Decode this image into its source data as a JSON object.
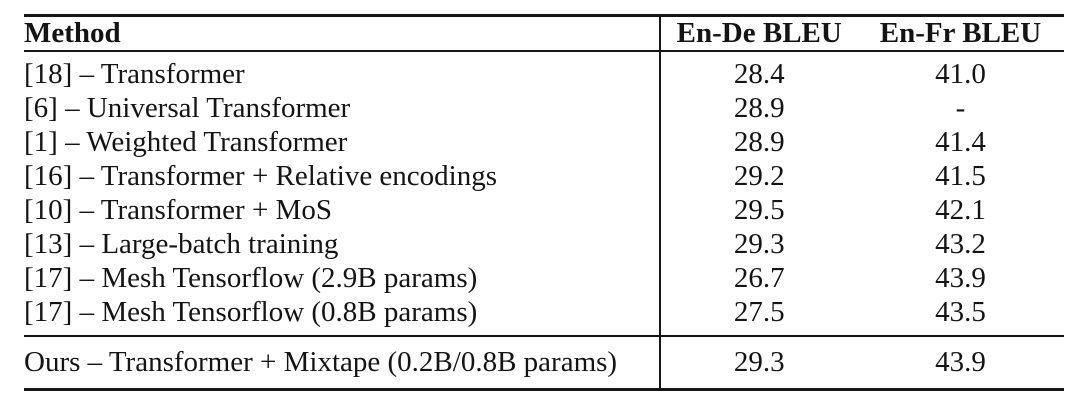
{
  "page": {
    "background_color": "#ffffff",
    "text_color": "#141414",
    "rule_color": "#161616"
  },
  "table": {
    "columns": [
      "Method",
      "En-De BLEU",
      "En-Fr BLEU"
    ],
    "rows": [
      {
        "method": "[18] – Transformer",
        "en_de": "28.4",
        "en_fr": "41.0"
      },
      {
        "method": "[6] – Universal Transformer",
        "en_de": "28.9",
        "en_fr": "-"
      },
      {
        "method": "[1] – Weighted Transformer",
        "en_de": "28.9",
        "en_fr": "41.4"
      },
      {
        "method": "[16] – Transformer + Relative encodings",
        "en_de": "29.2",
        "en_fr": "41.5"
      },
      {
        "method": "[10] – Transformer + MoS",
        "en_de": "29.5",
        "en_fr": "42.1"
      },
      {
        "method": "[13] – Large-batch training",
        "en_de": "29.3",
        "en_fr": "43.2"
      },
      {
        "method": "[17] – Mesh Tensorflow (2.9B params)",
        "en_de": "26.7",
        "en_fr": "43.9"
      },
      {
        "method": "[17] – Mesh Tensorflow (0.8B params)",
        "en_de": "27.5",
        "en_fr": "43.5"
      }
    ],
    "ours_row": {
      "method": "Ours – Transformer + Mixtape (0.2B/0.8B params)",
      "en_de": "29.3",
      "en_fr": "43.9"
    }
  },
  "chart_data": {
    "type": "table",
    "title": "",
    "columns": [
      "Method",
      "En-De BLEU",
      "En-Fr BLEU"
    ],
    "rows": [
      [
        "[18] – Transformer",
        28.4,
        41.0
      ],
      [
        "[6] – Universal Transformer",
        28.9,
        null
      ],
      [
        "[1] – Weighted Transformer",
        28.9,
        41.4
      ],
      [
        "[16] – Transformer + Relative encodings",
        29.2,
        41.5
      ],
      [
        "[10] – Transformer + MoS",
        29.5,
        42.1
      ],
      [
        "[13] – Large-batch training",
        29.3,
        43.2
      ],
      [
        "[17] – Mesh Tensorflow (2.9B params)",
        26.7,
        43.9
      ],
      [
        "[17] – Mesh Tensorflow (0.8B params)",
        27.5,
        43.5
      ],
      [
        "Ours – Transformer + Mixtape (0.2B/0.8B params)",
        29.3,
        43.9
      ]
    ]
  }
}
